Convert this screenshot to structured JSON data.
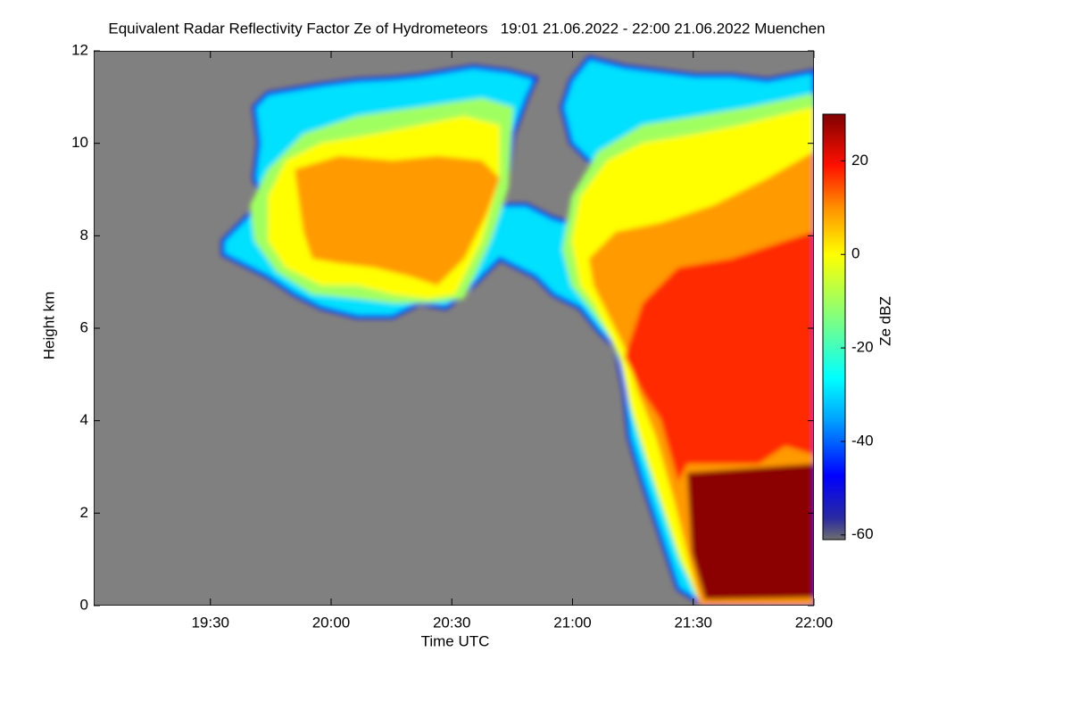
{
  "chart_data": {
    "type": "heatmap",
    "title": "Equivalent Radar Reflectivity Factor Ze of Hydrometeors   19:01 21.06.2022 - 22:00 21.06.2022 Muenchen",
    "xlabel": "Time UTC",
    "ylabel": "Height km",
    "colorbar_label": "Ze dBZ",
    "xlim": [
      19.0167,
      22
    ],
    "xticks": [
      {
        "value": 19.5,
        "label": "19:30"
      },
      {
        "value": 20,
        "label": "20:00"
      },
      {
        "value": 20.5,
        "label": "20:30"
      },
      {
        "value": 21,
        "label": "21:00"
      },
      {
        "value": 21.5,
        "label": "21:30"
      },
      {
        "value": 22,
        "label": "22:00"
      }
    ],
    "ylim": [
      0,
      12
    ],
    "yticks": [
      0,
      2,
      4,
      6,
      8,
      10,
      12
    ],
    "clim": [
      -61,
      30
    ],
    "cticks": [
      -60,
      -40,
      -20,
      0,
      20
    ]
  }
}
